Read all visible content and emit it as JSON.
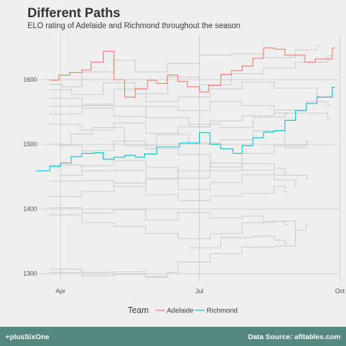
{
  "header": {
    "title": "Different Paths",
    "subtitle": "ELO rating of Adelaide and Richmond throughout the season"
  },
  "footer": {
    "left": "+plusSixOne",
    "right": "Data Source: afltables.com"
  },
  "colors": {
    "adelaide": "#f8766d",
    "richmond": "#00bfc4",
    "background_teams": "#c9c9c9",
    "gridline": "#d0d0d0",
    "footer_bg": "#54877f"
  },
  "chart_data": {
    "type": "line",
    "step": true,
    "title": "Different Paths",
    "subtitle": "ELO rating of Adelaide and Richmond throughout the season",
    "xlabel": "",
    "ylabel": "",
    "xlim": [
      "2017-03-18",
      "2017-10-01"
    ],
    "ylim": [
      1288,
      1670
    ],
    "x_ticks": [
      {
        "date": "2017-04-01",
        "label": "Apr"
      },
      {
        "date": "2017-07-01",
        "label": "Jul"
      },
      {
        "date": "2017-10-01",
        "label": "Oct"
      }
    ],
    "y_ticks": [
      1300,
      1400,
      1500,
      1600
    ],
    "grid": true,
    "legend": {
      "title": "Team",
      "position": "bottom"
    },
    "series": [
      {
        "name": "Adelaide",
        "points": [
          [
            "2017-03-25",
            1599
          ],
          [
            "2017-03-31",
            1607
          ],
          [
            "2017-04-07",
            1611
          ],
          [
            "2017-04-15",
            1615
          ],
          [
            "2017-04-21",
            1627
          ],
          [
            "2017-04-29",
            1644
          ],
          [
            "2017-05-06",
            1600
          ],
          [
            "2017-05-13",
            1573
          ],
          [
            "2017-05-20",
            1586
          ],
          [
            "2017-05-28",
            1599
          ],
          [
            "2017-06-03",
            1594
          ],
          [
            "2017-06-10",
            1607
          ],
          [
            "2017-06-17",
            1597
          ],
          [
            "2017-06-23",
            1589
          ],
          [
            "2017-07-01",
            1581
          ],
          [
            "2017-07-07",
            1591
          ],
          [
            "2017-07-15",
            1608
          ],
          [
            "2017-07-22",
            1614
          ],
          [
            "2017-07-29",
            1621
          ],
          [
            "2017-08-05",
            1633
          ],
          [
            "2017-08-12",
            1649
          ],
          [
            "2017-08-19",
            1647
          ],
          [
            "2017-08-26",
            1638
          ],
          [
            "2017-09-08",
            1627
          ],
          [
            "2017-09-15",
            1632
          ],
          [
            "2017-09-26",
            1649
          ]
        ]
      },
      {
        "name": "Richmond",
        "points": [
          [
            "2017-03-16",
            1459
          ],
          [
            "2017-03-25",
            1466
          ],
          [
            "2017-04-01",
            1471
          ],
          [
            "2017-04-08",
            1481
          ],
          [
            "2017-04-15",
            1486
          ],
          [
            "2017-04-23",
            1487
          ],
          [
            "2017-04-29",
            1477
          ],
          [
            "2017-05-06",
            1480
          ],
          [
            "2017-05-13",
            1483
          ],
          [
            "2017-05-20",
            1480
          ],
          [
            "2017-05-26",
            1485
          ],
          [
            "2017-06-03",
            1496
          ],
          [
            "2017-06-18",
            1502
          ],
          [
            "2017-07-01",
            1518
          ],
          [
            "2017-07-08",
            1500
          ],
          [
            "2017-07-15",
            1493
          ],
          [
            "2017-07-23",
            1486
          ],
          [
            "2017-07-29",
            1498
          ],
          [
            "2017-08-05",
            1510
          ],
          [
            "2017-08-12",
            1519
          ],
          [
            "2017-08-19",
            1521
          ],
          [
            "2017-08-26",
            1537
          ],
          [
            "2017-09-02",
            1552
          ],
          [
            "2017-09-09",
            1563
          ],
          [
            "2017-09-16",
            1573
          ],
          [
            "2017-09-26",
            1588
          ]
        ]
      }
    ],
    "background_series": [
      [
        [
          "2017-03-25",
          1593
        ],
        [
          "2017-04-02",
          1589
        ],
        [
          "2017-04-15",
          1612
        ],
        [
          "2017-05-06",
          1630
        ],
        [
          "2017-05-20",
          1612
        ],
        [
          "2017-06-10",
          1625
        ],
        [
          "2017-07-01",
          1638
        ],
        [
          "2017-07-22",
          1640
        ],
        [
          "2017-08-12",
          1634
        ],
        [
          "2017-09-02",
          1646
        ],
        [
          "2017-09-16",
          1653
        ]
      ],
      [
        [
          "2017-03-25",
          1584
        ],
        [
          "2017-04-08",
          1577
        ],
        [
          "2017-04-29",
          1595
        ],
        [
          "2017-05-20",
          1578
        ],
        [
          "2017-06-10",
          1604
        ],
        [
          "2017-07-01",
          1592
        ],
        [
          "2017-07-22",
          1609
        ],
        [
          "2017-08-12",
          1618
        ],
        [
          "2017-09-02",
          1627
        ],
        [
          "2017-09-23",
          1637
        ]
      ],
      [
        [
          "2017-03-25",
          1571
        ],
        [
          "2017-04-15",
          1562
        ],
        [
          "2017-05-06",
          1585
        ],
        [
          "2017-05-27",
          1566
        ],
        [
          "2017-06-17",
          1573
        ],
        [
          "2017-07-08",
          1586
        ],
        [
          "2017-07-29",
          1596
        ],
        [
          "2017-08-19",
          1587
        ],
        [
          "2017-09-16",
          1574
        ]
      ],
      [
        [
          "2017-03-25",
          1559
        ],
        [
          "2017-04-15",
          1556
        ],
        [
          "2017-05-06",
          1543
        ],
        [
          "2017-05-27",
          1558
        ],
        [
          "2017-06-17",
          1552
        ],
        [
          "2017-07-08",
          1566
        ],
        [
          "2017-07-29",
          1560
        ],
        [
          "2017-08-19",
          1548
        ],
        [
          "2017-09-23",
          1538
        ]
      ],
      [
        [
          "2017-03-25",
          1547
        ],
        [
          "2017-04-15",
          1560
        ],
        [
          "2017-05-06",
          1559
        ],
        [
          "2017-05-27",
          1541
        ],
        [
          "2017-06-24",
          1531
        ],
        [
          "2017-07-15",
          1526
        ],
        [
          "2017-08-05",
          1542
        ],
        [
          "2017-08-26",
          1549
        ]
      ],
      [
        [
          "2017-03-25",
          1531
        ],
        [
          "2017-04-15",
          1522
        ],
        [
          "2017-05-06",
          1533
        ],
        [
          "2017-05-27",
          1517
        ],
        [
          "2017-06-17",
          1527
        ],
        [
          "2017-07-08",
          1536
        ],
        [
          "2017-07-29",
          1544
        ],
        [
          "2017-08-19",
          1553
        ],
        [
          "2017-09-09",
          1566
        ],
        [
          "2017-09-23",
          1561
        ]
      ],
      [
        [
          "2017-03-25",
          1500
        ],
        [
          "2017-04-08",
          1516
        ],
        [
          "2017-04-22",
          1526
        ],
        [
          "2017-05-13",
          1498
        ],
        [
          "2017-06-03",
          1515
        ],
        [
          "2017-06-24",
          1502
        ],
        [
          "2017-07-15",
          1507
        ],
        [
          "2017-08-05",
          1521
        ],
        [
          "2017-08-26",
          1495
        ],
        [
          "2017-09-09",
          1499
        ]
      ],
      [
        [
          "2017-03-25",
          1468
        ],
        [
          "2017-04-15",
          1459
        ],
        [
          "2017-05-06",
          1460
        ],
        [
          "2017-05-27",
          1448
        ],
        [
          "2017-06-17",
          1459
        ],
        [
          "2017-07-08",
          1471
        ],
        [
          "2017-07-29",
          1486
        ],
        [
          "2017-08-19",
          1498
        ],
        [
          "2017-09-09",
          1505
        ]
      ],
      [
        [
          "2017-03-25",
          1443
        ],
        [
          "2017-04-15",
          1444
        ],
        [
          "2017-05-06",
          1435
        ],
        [
          "2017-05-27",
          1446
        ],
        [
          "2017-06-17",
          1430
        ],
        [
          "2017-07-08",
          1441
        ],
        [
          "2017-07-29",
          1453
        ],
        [
          "2017-08-19",
          1445
        ],
        [
          "2017-09-02",
          1436
        ]
      ],
      [
        [
          "2017-03-25",
          1419
        ],
        [
          "2017-04-15",
          1427
        ],
        [
          "2017-05-06",
          1440
        ],
        [
          "2017-05-27",
          1422
        ],
        [
          "2017-06-17",
          1413
        ],
        [
          "2017-07-08",
          1420
        ],
        [
          "2017-07-29",
          1424
        ],
        [
          "2017-08-19",
          1435
        ],
        [
          "2017-08-26",
          1426
        ]
      ],
      [
        [
          "2017-03-25",
          1402
        ],
        [
          "2017-04-15",
          1394
        ],
        [
          "2017-05-06",
          1399
        ],
        [
          "2017-05-27",
          1383
        ],
        [
          "2017-06-17",
          1395
        ],
        [
          "2017-07-08",
          1386
        ],
        [
          "2017-07-29",
          1389
        ],
        [
          "2017-08-12",
          1381
        ],
        [
          "2017-08-26",
          1375
        ]
      ],
      [
        [
          "2017-03-25",
          1391
        ],
        [
          "2017-04-15",
          1379
        ],
        [
          "2017-05-06",
          1373
        ],
        [
          "2017-05-27",
          1362
        ],
        [
          "2017-06-17",
          1354
        ],
        [
          "2017-07-08",
          1362
        ],
        [
          "2017-07-29",
          1379
        ],
        [
          "2017-08-19",
          1381
        ],
        [
          "2017-09-02",
          1367
        ]
      ],
      [
        [
          "2017-03-25",
          1307
        ],
        [
          "2017-04-15",
          1302
        ],
        [
          "2017-05-06",
          1299
        ],
        [
          "2017-05-27",
          1294
        ],
        [
          "2017-06-10",
          1302
        ],
        [
          "2017-06-17",
          1318
        ],
        [
          "2017-07-08",
          1331
        ],
        [
          "2017-07-29",
          1341
        ],
        [
          "2017-08-19",
          1343
        ],
        [
          "2017-09-02",
          1367
        ],
        [
          "2017-09-09",
          1375
        ]
      ],
      [
        [
          "2017-03-25",
          1302
        ],
        [
          "2017-04-15",
          1297
        ],
        [
          "2017-05-06",
          1303
        ],
        [
          "2017-05-27",
          1296
        ],
        [
          "2017-06-10",
          1301
        ]
      ],
      [
        [
          "2017-03-31",
          1498
        ],
        [
          "2017-04-15",
          1490
        ],
        [
          "2017-05-06",
          1505
        ],
        [
          "2017-05-27",
          1493
        ],
        [
          "2017-06-17",
          1484
        ],
        [
          "2017-07-08",
          1465
        ],
        [
          "2017-07-29",
          1460
        ],
        [
          "2017-08-19",
          1452
        ],
        [
          "2017-09-09",
          1447
        ]
      ],
      [
        [
          "2017-03-31",
          1452
        ],
        [
          "2017-04-15",
          1467
        ],
        [
          "2017-05-06",
          1475
        ],
        [
          "2017-05-27",
          1464
        ],
        [
          "2017-06-17",
          1448
        ],
        [
          "2017-07-08",
          1459
        ],
        [
          "2017-07-29",
          1470
        ],
        [
          "2017-08-19",
          1463
        ],
        [
          "2017-08-26",
          1455
        ]
      ],
      [
        [
          "2017-06-24",
          1340
        ],
        [
          "2017-07-15",
          1356
        ],
        [
          "2017-08-05",
          1358
        ],
        [
          "2017-08-19",
          1352
        ],
        [
          "2017-08-26",
          1346
        ]
      ]
    ]
  }
}
